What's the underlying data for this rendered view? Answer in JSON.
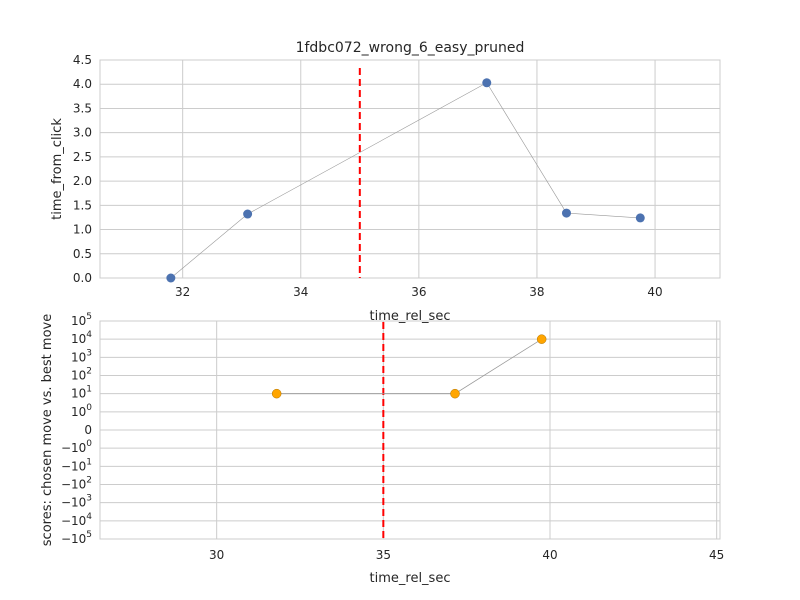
{
  "chart_data": [
    {
      "type": "scatter",
      "title": "1fdbc072_wrong_6_easy_pruned",
      "xlabel": "time_rel_sec",
      "ylabel": "time_from_click",
      "xlim": [
        30.6,
        41.1
      ],
      "ylim": [
        0,
        4.5
      ],
      "xticks": [
        "32",
        "34",
        "36",
        "38",
        "40"
      ],
      "yticks": [
        "0.0",
        "0.5",
        "1.0",
        "1.5",
        "2.0",
        "2.5",
        "3.0",
        "3.5",
        "4.0",
        "4.5"
      ],
      "grid": true,
      "marker_color": "#4c72b0",
      "connector_color": "#999999",
      "vline": {
        "x": 35.0,
        "color": "#ff0000",
        "style": "dashed"
      },
      "series": [
        {
          "x": [
            31.8,
            33.1,
            37.15,
            38.5,
            39.75
          ],
          "y": [
            0.0,
            1.32,
            4.03,
            1.34,
            1.24
          ]
        }
      ]
    },
    {
      "type": "scatter",
      "title": "",
      "xlabel": "time_rel_sec",
      "ylabel": "scores: chosen move vs. best move",
      "xlim": [
        26.5,
        45.1
      ],
      "yscale": "symlog",
      "ylim": [
        -100000,
        100000
      ],
      "xticks": [
        "30",
        "35",
        "40",
        "45"
      ],
      "yticks": [
        {
          "value": 100000,
          "base": "10",
          "exp": "5",
          "sign": ""
        },
        {
          "value": 10000,
          "base": "10",
          "exp": "4",
          "sign": ""
        },
        {
          "value": 1000,
          "base": "10",
          "exp": "3",
          "sign": ""
        },
        {
          "value": 100,
          "base": "10",
          "exp": "2",
          "sign": ""
        },
        {
          "value": 10,
          "base": "10",
          "exp": "1",
          "sign": ""
        },
        {
          "value": 1,
          "base": "10",
          "exp": "0",
          "sign": ""
        },
        {
          "value": 0,
          "base": "0",
          "exp": "",
          "sign": ""
        },
        {
          "value": -1,
          "base": "10",
          "exp": "0",
          "sign": "−"
        },
        {
          "value": -10,
          "base": "10",
          "exp": "1",
          "sign": "−"
        },
        {
          "value": -100,
          "base": "10",
          "exp": "2",
          "sign": "−"
        },
        {
          "value": -1000,
          "base": "10",
          "exp": "3",
          "sign": "−"
        },
        {
          "value": -10000,
          "base": "10",
          "exp": "4",
          "sign": "−"
        },
        {
          "value": -100000,
          "base": "10",
          "exp": "5",
          "sign": "−"
        }
      ],
      "grid": true,
      "marker_color": "#ffa500",
      "connector_color": "#999999",
      "vline": {
        "x": 35.0,
        "color": "#ff0000",
        "style": "dashed"
      },
      "series": [
        {
          "x": [
            31.8,
            37.15,
            39.75
          ],
          "y": [
            10,
            10,
            10000
          ]
        }
      ]
    }
  ]
}
